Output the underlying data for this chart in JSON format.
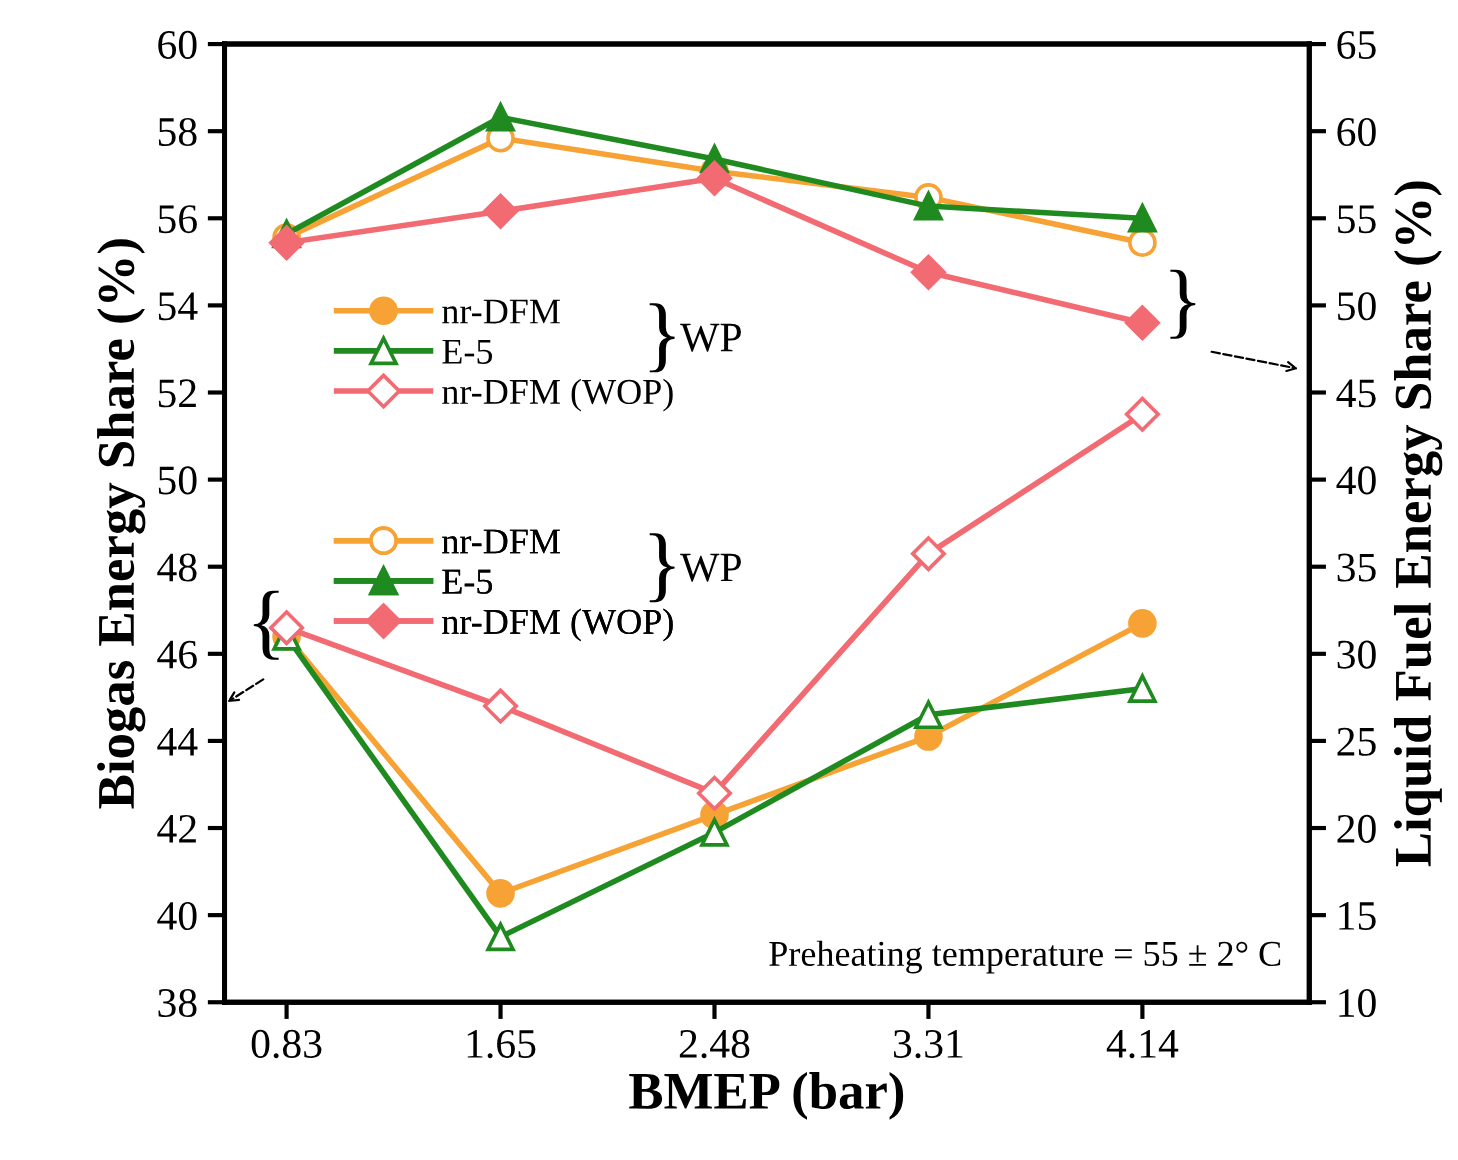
{
  "chart_data": {
    "type": "line",
    "xlabel": "BMEP (bar)",
    "ylabel": "Biogas Energy Share (%)",
    "y2label": "Liquid Fuel Energy Share (%)",
    "categories": [
      "0.83",
      "1.65",
      "2.48",
      "3.31",
      "4.14"
    ],
    "ylim": [
      38,
      60
    ],
    "yticks": [
      38,
      40,
      42,
      44,
      46,
      48,
      50,
      52,
      54,
      56,
      58,
      60
    ],
    "y2lim": [
      10,
      65
    ],
    "y2ticks": [
      10,
      15,
      20,
      25,
      30,
      35,
      40,
      45,
      50,
      55,
      60,
      65
    ],
    "series": [
      {
        "name": "nr-DFM",
        "color": "#f7a234",
        "axis": "y",
        "marker": "circle",
        "values": [
          46.4,
          40.5,
          42.3,
          44.1,
          46.7
        ]
      },
      {
        "name": "E-5",
        "color": "#1f8a1f",
        "axis": "y",
        "marker": "triangle",
        "values": [
          46.4,
          39.5,
          41.9,
          44.6,
          45.2
        ]
      },
      {
        "name": "nr-DFM (WOP)",
        "color": "#f26a72",
        "axis": "y",
        "marker": "diamond",
        "values": [
          46.6,
          44.8,
          42.8,
          48.3,
          51.5
        ]
      },
      {
        "name": "nr-DFM",
        "color": "#f7a234",
        "axis": "y2",
        "marker": "circle",
        "values": [
          53.9,
          59.6,
          57.7,
          56.2,
          53.6
        ]
      },
      {
        "name": "E-5",
        "color": "#1f8a1f",
        "axis": "y2",
        "marker": "triangle",
        "values": [
          54.1,
          60.8,
          58.4,
          55.7,
          55.0
        ]
      },
      {
        "name": "nr-DFM (WOP)",
        "color": "#f26a72",
        "axis": "y2",
        "marker": "diamond",
        "values": [
          53.6,
          55.4,
          57.3,
          51.9,
          49.0
        ]
      }
    ],
    "annotations": [
      "}",
      "WP",
      "}",
      "WP",
      "{",
      "}",
      "Preheating temperature = 55 ± 2° C"
    ],
    "legend": "left",
    "grid": false,
    "line_style": "solid"
  }
}
